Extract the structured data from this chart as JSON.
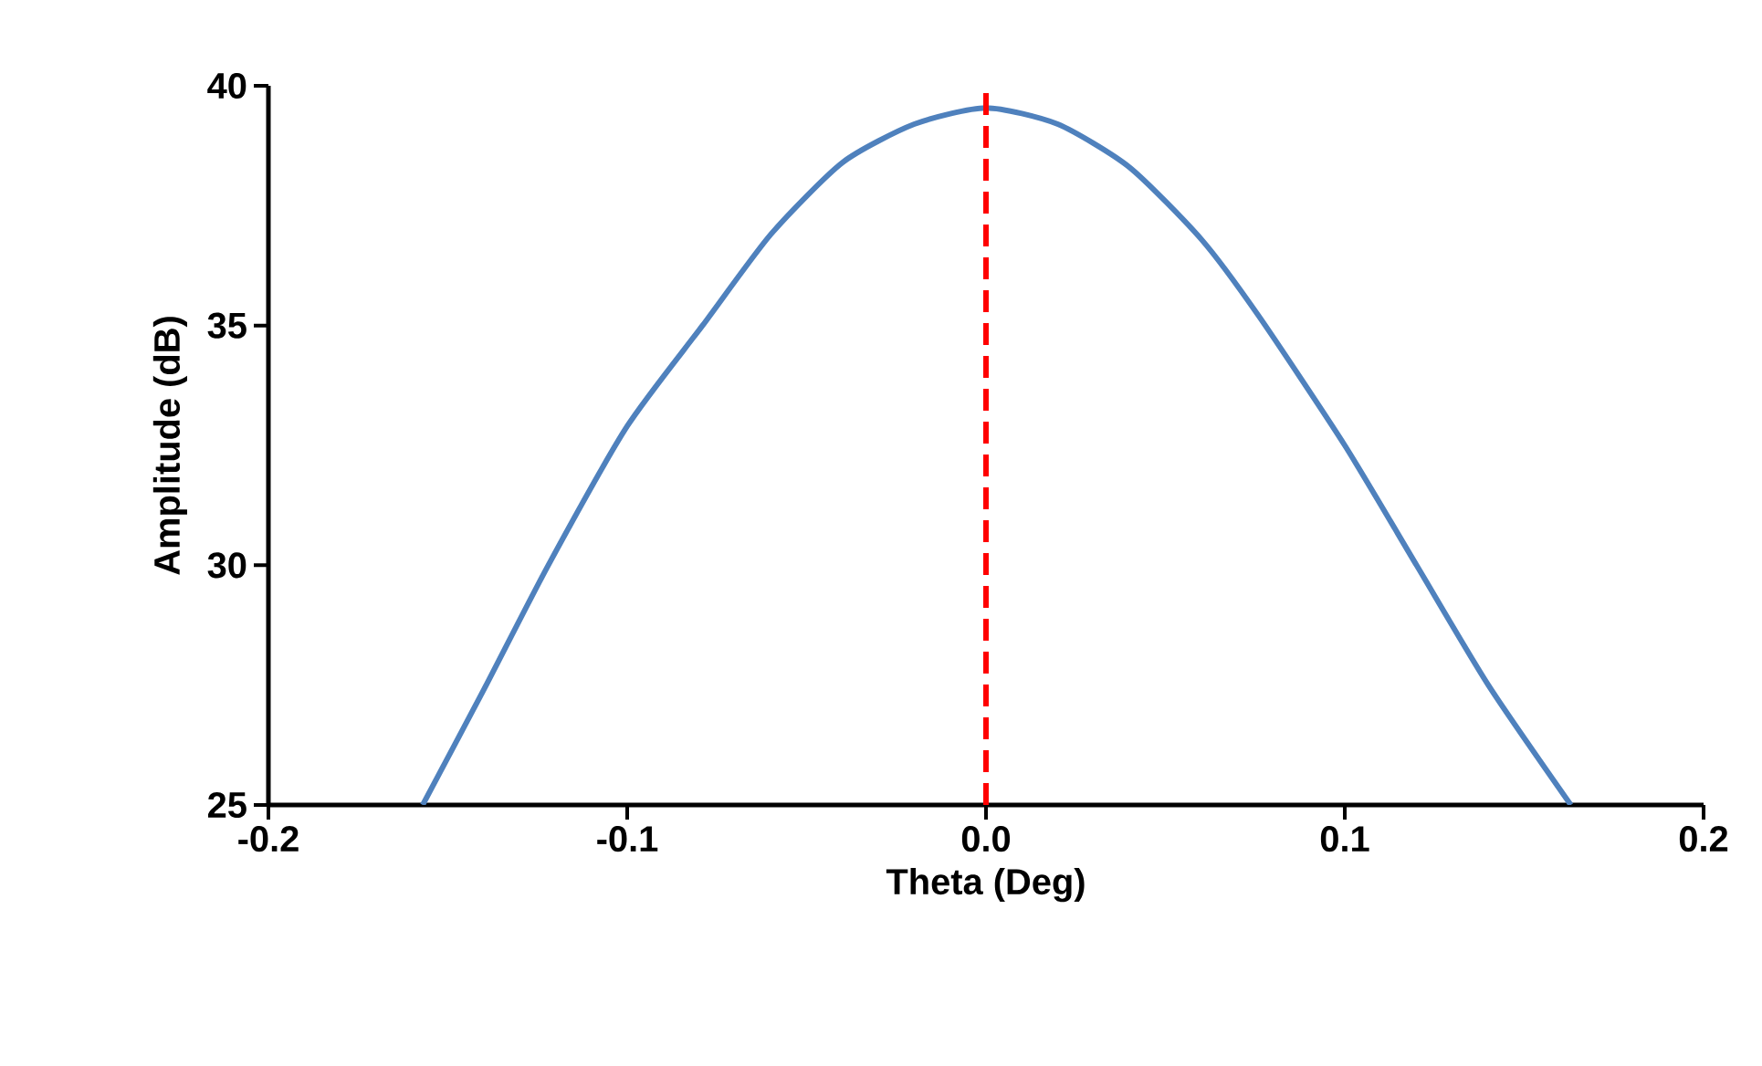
{
  "chart_data": {
    "type": "line",
    "xlabel": "Theta (Deg)",
    "ylabel": "Amplitude (dB)",
    "xlim": [
      -0.2,
      0.2
    ],
    "ylim": [
      25,
      40
    ],
    "xticks": [
      -0.2,
      -0.1,
      {
        "value": 0,
        "label": "0.0"
      },
      0.1,
      0.2
    ],
    "yticks": [
      25,
      30,
      35,
      40
    ],
    "series": [
      {
        "color": "#4f81bd",
        "x": [
          -0.157,
          -0.14,
          -0.122,
          -0.1,
          -0.079,
          -0.06,
          -0.04,
          -0.02,
          0,
          0.02,
          0.04,
          0.06,
          0.076,
          0.1,
          0.12,
          0.14,
          0.163
        ],
        "values": [
          25,
          27.4,
          30,
          32.9,
          35,
          36.9,
          38.4,
          39.2,
          39.54,
          39.2,
          38.3,
          36.8,
          35.2,
          32.5,
          30,
          27.5,
          25
        ]
      }
    ],
    "ref_lines": [
      {
        "axis": "x",
        "value": 0,
        "color": "#ff0000",
        "line_style": "dashed"
      }
    ],
    "grid": false,
    "marker": "none",
    "line_style": "solid"
  }
}
